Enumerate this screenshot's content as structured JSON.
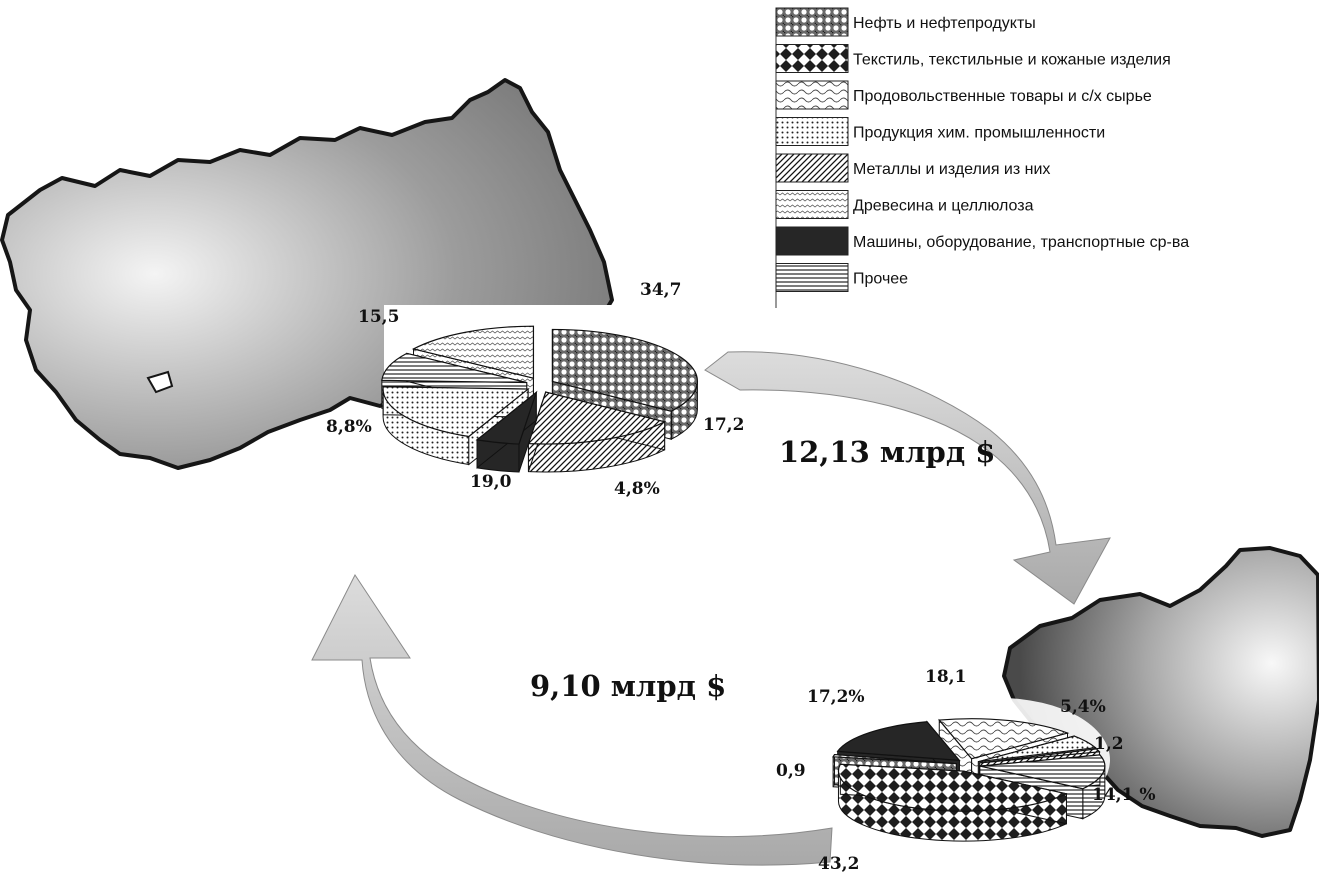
{
  "legend": {
    "items": [
      {
        "label": "Нефть и нефтепродукты",
        "pattern": "pat-circles"
      },
      {
        "label": "Текстиль, текстильные  и кожаные изделия",
        "pattern": "pat-diamonds"
      },
      {
        "label": "Продовольственные товары и с/х сырье",
        "pattern": "pat-waves-light"
      },
      {
        "label": "Продукция хим. промышленности",
        "pattern": "pat-dots"
      },
      {
        "label": "Металлы и изделия из них",
        "pattern": "pat-diagonal"
      },
      {
        "label": "Древесина и целлюлоза",
        "pattern": "pat-zigzag"
      },
      {
        "label": "Машины, оборудование, транспортные ср-ва",
        "pattern": "pat-solid"
      },
      {
        "label": "Прочее",
        "pattern": "pat-hlines"
      }
    ]
  },
  "flows": {
    "export_label": "12,13 млрд $",
    "import_label": "9,10 млрд $"
  },
  "chart_data": [
    {
      "type": "pie",
      "title": "",
      "slices": [
        {
          "category": "Нефть и нефтепродукты",
          "value": 34.7,
          "label": "34,7"
        },
        {
          "category": "Металлы и изделия из них",
          "value": 17.2,
          "label": "17,2"
        },
        {
          "category": "Машины, оборудование, транспортные ср-ва",
          "value": 4.8,
          "label": "4,8%"
        },
        {
          "category": "Продукция хим. промышленности",
          "value": 19.0,
          "label": "19,0"
        },
        {
          "category": "Прочее",
          "value": 8.8,
          "label": "8,8%"
        },
        {
          "category": "Древесина и целлюлоза",
          "value": 15.5,
          "label": "15,5"
        }
      ]
    },
    {
      "type": "pie",
      "title": "",
      "slices": [
        {
          "category": "Продовольственные товары и с/х сырье",
          "value": 18.1,
          "label": "18,1"
        },
        {
          "category": "Продукция хим. промышленности",
          "value": 5.4,
          "label": "5,4%"
        },
        {
          "category": "Металлы и изделия из них",
          "value": 1.2,
          "label": "1,2"
        },
        {
          "category": "Прочее",
          "value": 14.1,
          "label": "14,1 %"
        },
        {
          "category": "Текстиль, текстильные  и кожаные изделия",
          "value": 43.2,
          "label": "43,2"
        },
        {
          "category": "Нефть и нефтепродукты",
          "value": 0.9,
          "label": "0,9"
        },
        {
          "category": "Машины, оборудование, транспортные ср-ва",
          "value": 17.2,
          "label": "17,2%"
        }
      ]
    }
  ]
}
